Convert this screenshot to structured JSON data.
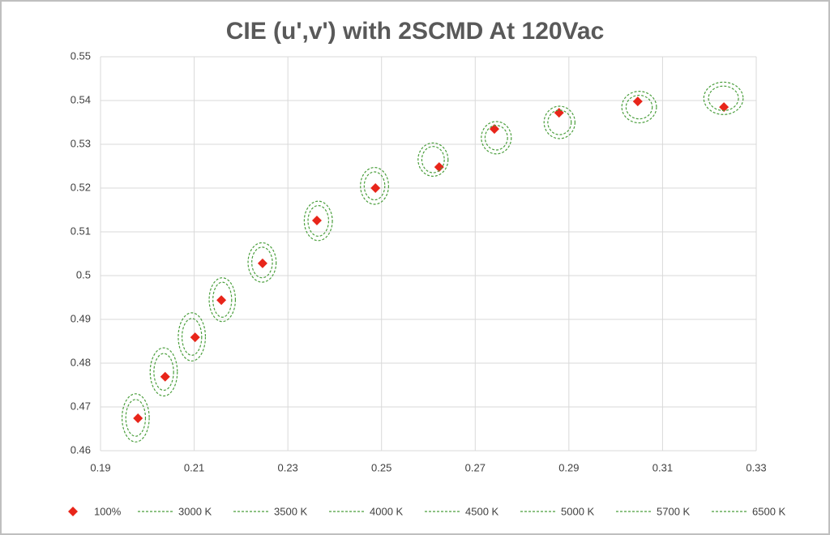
{
  "chart_data": {
    "type": "scatter",
    "title": "CIE (u',v') with 2SCMD At 120Vac",
    "xlim": [
      0.19,
      0.33
    ],
    "xticks": [
      0.19,
      0.21,
      0.23,
      0.25,
      0.27,
      0.29,
      0.31,
      0.33
    ],
    "ylim": [
      0.46,
      0.55
    ],
    "yticks": [
      0.46,
      0.47,
      0.48,
      0.49,
      0.5,
      0.51,
      0.52,
      0.53,
      0.54,
      0.55
    ],
    "grid": true,
    "legend": "bottom",
    "series": [
      {
        "name": "100%",
        "color": "#e8251a",
        "x": [
          0.198,
          0.2038,
          0.2102,
          0.2158,
          0.2246,
          0.2362,
          0.2487,
          0.2623,
          0.2741,
          0.2879,
          0.3047,
          0.3231
        ],
        "values": [
          0.4674,
          0.4769,
          0.4859,
          0.4944,
          0.5028,
          0.5126,
          0.52,
          0.5248,
          0.5335,
          0.5372,
          0.5398,
          0.5385
        ]
      },
      {
        "name": "3000 K",
        "color": "#4a9e3c",
        "ellipses": [
          {
            "cx": 0.1975,
            "cy": 0.4675,
            "rx": 0.0029,
            "ry": 0.0055
          },
          {
            "cx": 0.1975,
            "cy": 0.4675,
            "rx": 0.0021,
            "ry": 0.0042
          },
          {
            "cx": 0.2035,
            "cy": 0.478,
            "rx": 0.0029,
            "ry": 0.0055
          },
          {
            "cx": 0.2035,
            "cy": 0.478,
            "rx": 0.0021,
            "ry": 0.0042
          }
        ]
      },
      {
        "name": "3500 K",
        "color": "#4a9e3c",
        "ellipses": [
          {
            "cx": 0.2095,
            "cy": 0.486,
            "rx": 0.0029,
            "ry": 0.0055
          },
          {
            "cx": 0.2095,
            "cy": 0.486,
            "rx": 0.0021,
            "ry": 0.0042
          },
          {
            "cx": 0.216,
            "cy": 0.4945,
            "rx": 0.0028,
            "ry": 0.005
          },
          {
            "cx": 0.216,
            "cy": 0.4945,
            "rx": 0.002,
            "ry": 0.004
          }
        ]
      },
      {
        "name": "4000 K",
        "color": "#4a9e3c",
        "ellipses": [
          {
            "cx": 0.2245,
            "cy": 0.503,
            "rx": 0.003,
            "ry": 0.0045
          },
          {
            "cx": 0.2245,
            "cy": 0.503,
            "rx": 0.0022,
            "ry": 0.0035
          },
          {
            "cx": 0.2365,
            "cy": 0.5125,
            "rx": 0.003,
            "ry": 0.0045
          },
          {
            "cx": 0.2365,
            "cy": 0.5125,
            "rx": 0.0022,
            "ry": 0.0035
          }
        ]
      },
      {
        "name": "4500 K",
        "color": "#4a9e3c",
        "ellipses": [
          {
            "cx": 0.2485,
            "cy": 0.5205,
            "rx": 0.003,
            "ry": 0.0042
          },
          {
            "cx": 0.2485,
            "cy": 0.5205,
            "rx": 0.0022,
            "ry": 0.0032
          },
          {
            "cx": 0.261,
            "cy": 0.5265,
            "rx": 0.0032,
            "ry": 0.0038
          },
          {
            "cx": 0.261,
            "cy": 0.5265,
            "rx": 0.0024,
            "ry": 0.003
          }
        ]
      },
      {
        "name": "5000 K",
        "color": "#4a9e3c",
        "ellipses": [
          {
            "cx": 0.2745,
            "cy": 0.5315,
            "rx": 0.0032,
            "ry": 0.0037
          },
          {
            "cx": 0.2745,
            "cy": 0.5315,
            "rx": 0.0024,
            "ry": 0.0028
          }
        ]
      },
      {
        "name": "5700 K",
        "color": "#4a9e3c",
        "ellipses": [
          {
            "cx": 0.288,
            "cy": 0.535,
            "rx": 0.0033,
            "ry": 0.0037
          },
          {
            "cx": 0.288,
            "cy": 0.535,
            "rx": 0.0025,
            "ry": 0.0028
          },
          {
            "cx": 0.305,
            "cy": 0.5385,
            "rx": 0.0037,
            "ry": 0.0036
          },
          {
            "cx": 0.305,
            "cy": 0.5385,
            "rx": 0.0028,
            "ry": 0.0027
          }
        ]
      },
      {
        "name": "6500 K",
        "color": "#4a9e3c",
        "ellipses": [
          {
            "cx": 0.323,
            "cy": 0.5405,
            "rx": 0.0042,
            "ry": 0.0037
          },
          {
            "cx": 0.323,
            "cy": 0.5405,
            "rx": 0.0032,
            "ry": 0.0028
          }
        ]
      }
    ]
  }
}
